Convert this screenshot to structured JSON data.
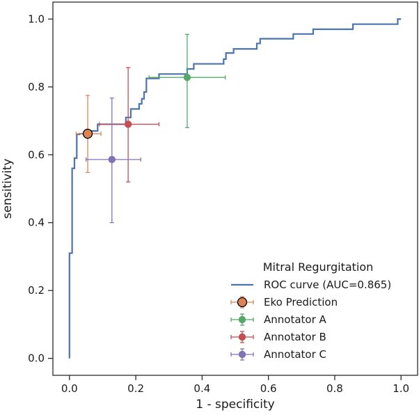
{
  "chart_data": {
    "type": "line",
    "title": "",
    "xlabel": "1 - specificity",
    "ylabel": "sensitivity",
    "xlim": [
      -0.05,
      1.05
    ],
    "ylim": [
      -0.05,
      1.05
    ],
    "xticks": [
      "0.0",
      "0.2",
      "0.4",
      "0.6",
      "0.8",
      "1.0"
    ],
    "yticks": [
      "0.0",
      "0.2",
      "0.4",
      "0.6",
      "0.8",
      "1.0"
    ],
    "grid": false,
    "legend": {
      "title": "Mitral Regurgitation",
      "position": "lower-right",
      "entries": [
        "ROC curve (AUC=0.865)",
        "Eko Prediction",
        "Annotator A",
        "Annotator B",
        "Annotator C"
      ]
    },
    "roc_curve": {
      "name": "ROC curve (AUC=0.865)",
      "color": "#4c72b0",
      "points": [
        [
          0.0,
          0.0
        ],
        [
          0.0,
          0.31
        ],
        [
          0.008,
          0.31
        ],
        [
          0.008,
          0.56
        ],
        [
          0.015,
          0.56
        ],
        [
          0.015,
          0.59
        ],
        [
          0.022,
          0.59
        ],
        [
          0.022,
          0.66
        ],
        [
          0.03,
          0.66
        ],
        [
          0.03,
          0.662
        ],
        [
          0.055,
          0.662
        ],
        [
          0.055,
          0.67
        ],
        [
          0.085,
          0.67
        ],
        [
          0.085,
          0.69
        ],
        [
          0.17,
          0.69
        ],
        [
          0.17,
          0.71
        ],
        [
          0.185,
          0.71
        ],
        [
          0.185,
          0.735
        ],
        [
          0.21,
          0.735
        ],
        [
          0.21,
          0.75
        ],
        [
          0.218,
          0.75
        ],
        [
          0.218,
          0.765
        ],
        [
          0.225,
          0.765
        ],
        [
          0.225,
          0.785
        ],
        [
          0.232,
          0.785
        ],
        [
          0.232,
          0.825
        ],
        [
          0.27,
          0.825
        ],
        [
          0.27,
          0.838
        ],
        [
          0.355,
          0.838
        ],
        [
          0.355,
          0.853
        ],
        [
          0.375,
          0.853
        ],
        [
          0.375,
          0.868
        ],
        [
          0.465,
          0.868
        ],
        [
          0.465,
          0.882
        ],
        [
          0.472,
          0.882
        ],
        [
          0.472,
          0.9
        ],
        [
          0.495,
          0.9
        ],
        [
          0.495,
          0.912
        ],
        [
          0.565,
          0.912
        ],
        [
          0.565,
          0.928
        ],
        [
          0.575,
          0.928
        ],
        [
          0.575,
          0.942
        ],
        [
          0.675,
          0.942
        ],
        [
          0.675,
          0.956
        ],
        [
          0.735,
          0.956
        ],
        [
          0.735,
          0.97
        ],
        [
          0.855,
          0.97
        ],
        [
          0.855,
          0.985
        ],
        [
          0.99,
          0.985
        ],
        [
          0.99,
          1.0
        ],
        [
          1.0,
          1.0
        ]
      ]
    },
    "points": [
      {
        "name": "Eko Prediction",
        "color": "#dd8452",
        "x": 0.055,
        "y": 0.662,
        "xerr": [
          0.02,
          0.095
        ],
        "yerr": [
          0.548,
          0.775
        ],
        "marker_edge": "#000000"
      },
      {
        "name": "Annotator A",
        "color": "#55a868",
        "x": 0.355,
        "y": 0.828,
        "xerr": [
          0.24,
          0.47
        ],
        "yerr": [
          0.68,
          0.955
        ]
      },
      {
        "name": "Annotator B",
        "color": "#c44e52",
        "x": 0.177,
        "y": 0.69,
        "xerr": [
          0.09,
          0.27
        ],
        "yerr": [
          0.52,
          0.857
        ]
      },
      {
        "name": "Annotator C",
        "color": "#8172b3",
        "x": 0.128,
        "y": 0.586,
        "xerr": [
          0.05,
          0.215
        ],
        "yerr": [
          0.4,
          0.767
        ]
      }
    ]
  }
}
